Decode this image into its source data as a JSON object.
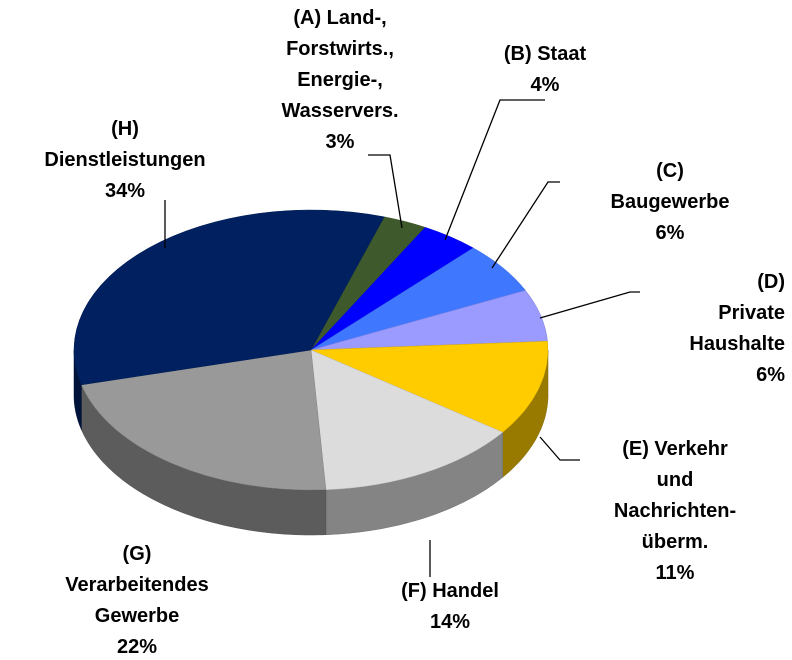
{
  "chart_data": {
    "type": "pie3d",
    "categories": [
      "(A) Land-,\nForstwirts.,\nEnergie-,\nWasservers.",
      "(B) Staat",
      "(C) Baugewerbe",
      "(D) Private\nHaushalte",
      "(E) Verkehr und\nNachrichten-\nüberm.",
      "(F) Handel",
      "(G)\nVerarbeitendes\nGewerbe",
      "(H)\nDienstleistungen"
    ],
    "values": [
      3,
      4,
      6,
      6,
      11,
      14,
      22,
      34
    ],
    "value_labels": [
      "3%",
      "4%",
      "6%",
      "6%",
      "11%",
      "14%",
      "22%",
      "34%"
    ],
    "colors": [
      "#3e5a2c",
      "#0000ff",
      "#3f78ff",
      "#9a9aff",
      "#ffcc00",
      "#dcdcdc",
      "#999999",
      "#002060"
    ]
  }
}
